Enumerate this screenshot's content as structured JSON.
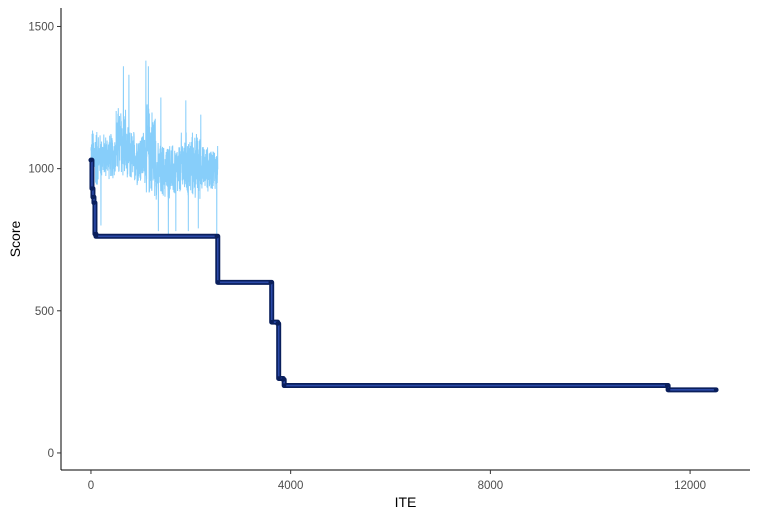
{
  "chart_data": {
    "type": "line",
    "title": "",
    "xlabel": "ITE",
    "ylabel": "Score",
    "xlim": [
      -600,
      13200
    ],
    "ylim": [
      -60,
      1565
    ],
    "x_ticks": [
      0,
      4000,
      8000,
      12000
    ],
    "x_tick_labels": [
      "0",
      "4000",
      "8000",
      "12000"
    ],
    "y_ticks": [
      0,
      500,
      1000,
      1500
    ],
    "y_tick_labels": [
      "0",
      "500",
      "1000",
      "1500"
    ],
    "grid": false,
    "legend": "none",
    "series": [
      {
        "style": "noisy-line",
        "color": "#87CEFA",
        "x_range": [
          0,
          2540
        ],
        "segments": [
          {
            "x": [
              0,
              150
            ],
            "mean": 1040,
            "spread": 120
          },
          {
            "x": [
              150,
              500
            ],
            "mean": 1045,
            "spread": 90
          },
          {
            "x": [
              500,
              700
            ],
            "mean": 1090,
            "spread": 150
          },
          {
            "x": [
              700,
              1100
            ],
            "mean": 1040,
            "spread": 110
          },
          {
            "x": [
              1100,
              1300
            ],
            "mean": 1060,
            "spread": 180
          },
          {
            "x": [
              1300,
              1800
            ],
            "mean": 990,
            "spread": 110
          },
          {
            "x": [
              1800,
              2200
            ],
            "mean": 1010,
            "spread": 130
          },
          {
            "x": [
              2200,
              2540
            ],
            "mean": 1000,
            "spread": 90
          }
        ],
        "peaks": [
          {
            "x": 650,
            "y": 1360
          },
          {
            "x": 760,
            "y": 1330
          },
          {
            "x": 1100,
            "y": 1380
          },
          {
            "x": 1150,
            "y": 1360
          },
          {
            "x": 1400,
            "y": 1250
          },
          {
            "x": 1900,
            "y": 1240
          },
          {
            "x": 2200,
            "y": 1190
          }
        ],
        "dips": [
          {
            "x": 200,
            "y": 800
          },
          {
            "x": 1350,
            "y": 780
          },
          {
            "x": 1550,
            "y": 770
          },
          {
            "x": 1700,
            "y": 780
          },
          {
            "x": 1950,
            "y": 780
          },
          {
            "x": 2150,
            "y": 790
          },
          {
            "x": 2520,
            "y": 770
          }
        ]
      },
      {
        "style": "step-line-with-points",
        "color": "#0A1F5C",
        "point_color": "#0A1F5C",
        "x": [
          0,
          20,
          40,
          60,
          80,
          100,
          2520,
          2540,
          3600,
          3620,
          3740,
          3760,
          3850,
          3870,
          11540,
          11560,
          12520
        ],
        "y": [
          1030,
          930,
          900,
          880,
          770,
          762,
          762,
          600,
          600,
          460,
          455,
          262,
          258,
          237,
          237,
          222,
          222
        ]
      }
    ]
  }
}
